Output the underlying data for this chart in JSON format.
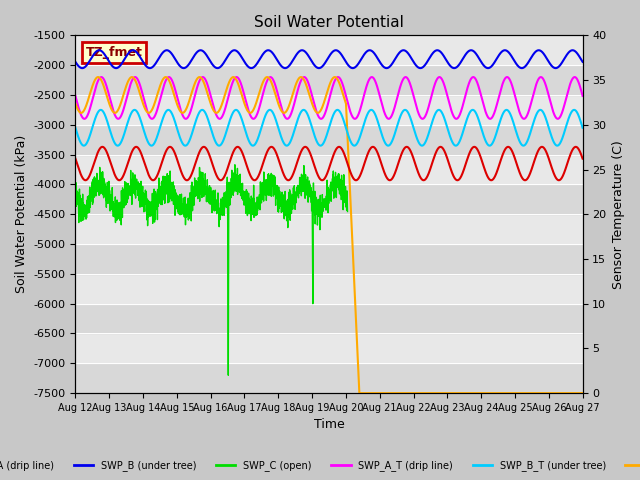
{
  "title": "Soil Water Potential",
  "xlabel": "Time",
  "ylabel_left": "Soil Water Potential (kPa)",
  "ylabel_right": "Sensor Temperature (C)",
  "ylim_left": [
    -7500,
    -1500
  ],
  "ylim_right": [
    0,
    40
  ],
  "xlim": [
    0,
    15
  ],
  "x_tick_labels": [
    "Aug 12",
    "Aug 13",
    "Aug 14",
    "Aug 15",
    "Aug 16",
    "Aug 17",
    "Aug 18",
    "Aug 19",
    "Aug 20",
    "Aug 21",
    "Aug 22",
    "Aug 23",
    "Aug 24",
    "Aug 25",
    "Aug 26",
    "Aug 27"
  ],
  "annotation_label": "TZ_fmet",
  "annotation_bg": "#ffffcc",
  "annotation_border": "#cc0000",
  "fig_bg": "#c8c8c8",
  "plot_bg_light": "#e8e8e8",
  "plot_bg_dark": "#d8d8d8",
  "band_step": 500,
  "colors": {
    "blue": "#0000ee",
    "magenta": "#ff00ff",
    "cyan": "#00ccff",
    "red": "#dd0000",
    "green": "#00dd00",
    "orange": "#ffaa00"
  }
}
